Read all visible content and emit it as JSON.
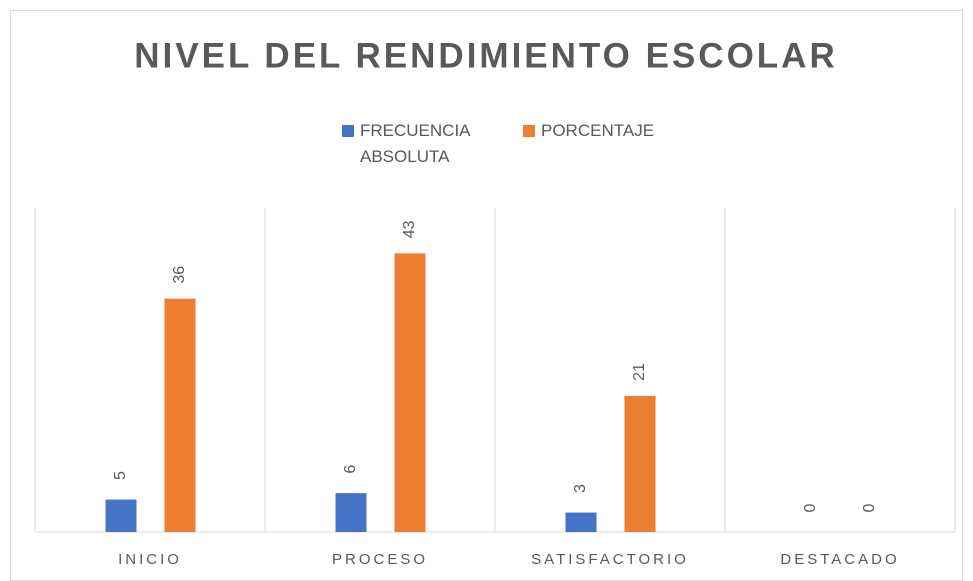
{
  "chart_data": {
    "type": "bar",
    "title": "NIVEL DEL RENDIMIENTO ESCOLAR",
    "categories": [
      "INICIO",
      "PROCESO",
      "SATISFACTORIO",
      "DESTACADO"
    ],
    "series": [
      {
        "name": "FRECUENCIA ABSOLUTA",
        "color": "#4472c4",
        "values": [
          5,
          6,
          3,
          0
        ]
      },
      {
        "name": "PORCENTAJE",
        "color": "#ed7d31",
        "values": [
          36,
          43,
          21,
          0
        ]
      }
    ],
    "ylim": [
      0,
      50
    ]
  }
}
